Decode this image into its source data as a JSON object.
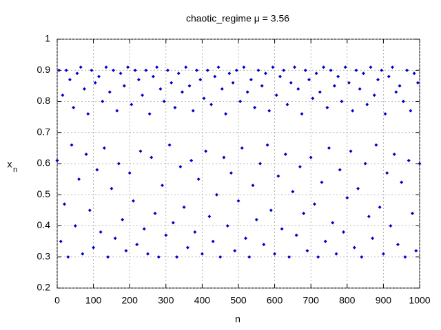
{
  "chart_data": {
    "type": "scatter",
    "title": "chaotic_regime  μ = 3.56",
    "xlabel": "n",
    "ylabel": "x",
    "ylabel_sub": "n",
    "color": "#0000cc",
    "grid": true,
    "xlim": [
      0,
      1000
    ],
    "ylim": [
      0.2,
      1
    ],
    "xticks": [
      0,
      100,
      200,
      300,
      400,
      500,
      600,
      700,
      800,
      900,
      1000
    ],
    "yticks": [
      0.2,
      0.3,
      0.4,
      0.5,
      0.6,
      0.7,
      0.8,
      0.9,
      1
    ],
    "x": [
      0,
      5,
      10,
      15,
      20,
      25,
      30,
      35,
      40,
      45,
      50,
      55,
      60,
      65,
      70,
      75,
      80,
      85,
      90,
      95,
      100,
      105,
      110,
      115,
      120,
      125,
      130,
      135,
      140,
      145,
      150,
      155,
      160,
      165,
      170,
      175,
      180,
      185,
      190,
      195,
      200,
      205,
      210,
      215,
      220,
      225,
      230,
      235,
      240,
      245,
      250,
      255,
      260,
      265,
      270,
      275,
      280,
      285,
      290,
      295,
      300,
      305,
      310,
      315,
      320,
      325,
      330,
      335,
      340,
      345,
      350,
      355,
      360,
      365,
      370,
      375,
      380,
      385,
      390,
      395,
      400,
      405,
      410,
      415,
      420,
      425,
      430,
      435,
      440,
      445,
      450,
      455,
      460,
      465,
      470,
      475,
      480,
      485,
      490,
      495,
      500,
      505,
      510,
      515,
      520,
      525,
      530,
      535,
      540,
      545,
      550,
      555,
      560,
      565,
      570,
      575,
      580,
      585,
      590,
      595,
      600,
      605,
      610,
      615,
      620,
      625,
      630,
      635,
      640,
      645,
      650,
      655,
      660,
      665,
      670,
      675,
      680,
      685,
      690,
      695,
      700,
      705,
      710,
      715,
      720,
      725,
      730,
      735,
      740,
      745,
      750,
      755,
      760,
      765,
      770,
      775,
      780,
      785,
      790,
      795,
      800,
      805,
      810,
      815,
      820,
      825,
      830,
      835,
      840,
      845,
      850,
      855,
      860,
      865,
      870,
      875,
      880,
      885,
      890,
      895,
      900,
      905,
      910,
      915,
      920,
      925,
      930,
      935,
      940,
      945,
      950,
      955,
      960,
      965,
      970,
      975,
      980,
      985,
      990,
      995,
      1000
    ],
    "values": [
      0.61,
      0.9,
      0.35,
      0.82,
      0.47,
      0.9,
      0.3,
      0.87,
      0.66,
      0.78,
      0.4,
      0.89,
      0.55,
      0.91,
      0.31,
      0.84,
      0.63,
      0.76,
      0.45,
      0.9,
      0.33,
      0.86,
      0.58,
      0.88,
      0.38,
      0.8,
      0.65,
      0.91,
      0.3,
      0.83,
      0.52,
      0.9,
      0.36,
      0.77,
      0.6,
      0.89,
      0.42,
      0.85,
      0.32,
      0.91,
      0.57,
      0.79,
      0.48,
      0.9,
      0.34,
      0.87,
      0.64,
      0.82,
      0.39,
      0.9,
      0.31,
      0.76,
      0.62,
      0.88,
      0.44,
      0.91,
      0.3,
      0.84,
      0.53,
      0.8,
      0.37,
      0.9,
      0.66,
      0.86,
      0.41,
      0.78,
      0.3,
      0.89,
      0.59,
      0.83,
      0.46,
      0.91,
      0.33,
      0.85,
      0.61,
      0.77,
      0.38,
      0.9,
      0.55,
      0.87,
      0.31,
      0.81,
      0.64,
      0.9,
      0.43,
      0.79,
      0.35,
      0.88,
      0.5,
      0.91,
      0.3,
      0.84,
      0.62,
      0.76,
      0.4,
      0.89,
      0.57,
      0.86,
      0.32,
      0.9,
      0.48,
      0.8,
      0.65,
      0.91,
      0.36,
      0.83,
      0.3,
      0.87,
      0.53,
      0.78,
      0.42,
      0.9,
      0.6,
      0.85,
      0.34,
      0.89,
      0.66,
      0.77,
      0.45,
      0.91,
      0.31,
      0.82,
      0.56,
      0.88,
      0.39,
      0.9,
      0.63,
      0.79,
      0.3,
      0.86,
      0.51,
      0.91,
      0.37,
      0.84,
      0.59,
      0.76,
      0.44,
      0.9,
      0.32,
      0.87,
      0.62,
      0.81,
      0.47,
      0.89,
      0.3,
      0.83,
      0.54,
      0.91,
      0.35,
      0.78,
      0.65,
      0.9,
      0.41,
      0.85,
      0.31,
      0.88,
      0.58,
      0.8,
      0.38,
      0.91,
      0.49,
      0.86,
      0.64,
      0.77,
      0.33,
      0.9,
      0.52,
      0.84,
      0.3,
      0.89,
      0.6,
      0.79,
      0.43,
      0.91,
      0.36,
      0.82,
      0.66,
      0.87,
      0.46,
      0.9,
      0.31,
      0.76,
      0.57,
      0.88,
      0.4,
      0.91,
      0.63,
      0.83,
      0.34,
      0.85,
      0.54,
      0.8,
      0.3,
      0.9,
      0.61,
      0.77,
      0.44,
      0.89,
      0.32,
      0.86,
      0.6
    ]
  }
}
